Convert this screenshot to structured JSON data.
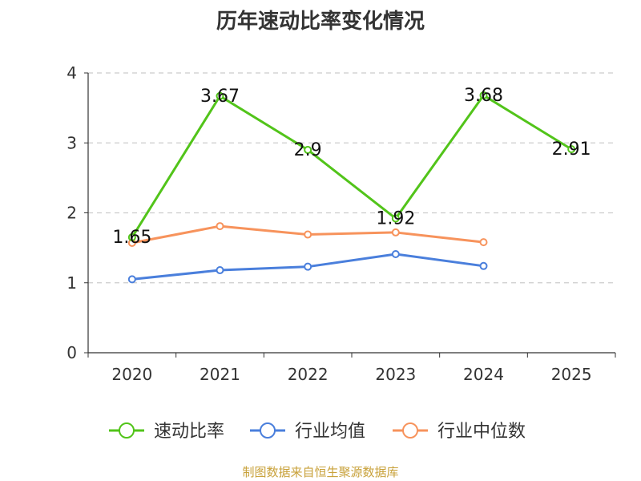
{
  "chart_data": {
    "type": "line",
    "title": "历年速动比率变化情况",
    "categories": [
      "2020",
      "2021",
      "2022",
      "2023",
      "2024",
      "2025"
    ],
    "y_ticks": [
      "0",
      "1",
      "2",
      "3",
      "4"
    ],
    "ylim": [
      0,
      4
    ],
    "grid": true,
    "legend_position": "bottom",
    "series": [
      {
        "name": "速动比率",
        "color": "#52c41a",
        "values": [
          1.65,
          3.67,
          2.9,
          1.92,
          3.68,
          2.91
        ],
        "labels": [
          "1.65",
          "3.67",
          "2.9",
          "1.92",
          "3.68",
          "2.91"
        ]
      },
      {
        "name": "行业均值",
        "color": "#4a7fdc",
        "values": [
          1.05,
          1.18,
          1.23,
          1.41,
          1.24,
          null
        ]
      },
      {
        "name": "行业中位数",
        "color": "#f7935c",
        "values": [
          1.57,
          1.81,
          1.69,
          1.72,
          1.58,
          null
        ]
      }
    ]
  },
  "source_text": "制图数据来自恒生聚源数据库"
}
